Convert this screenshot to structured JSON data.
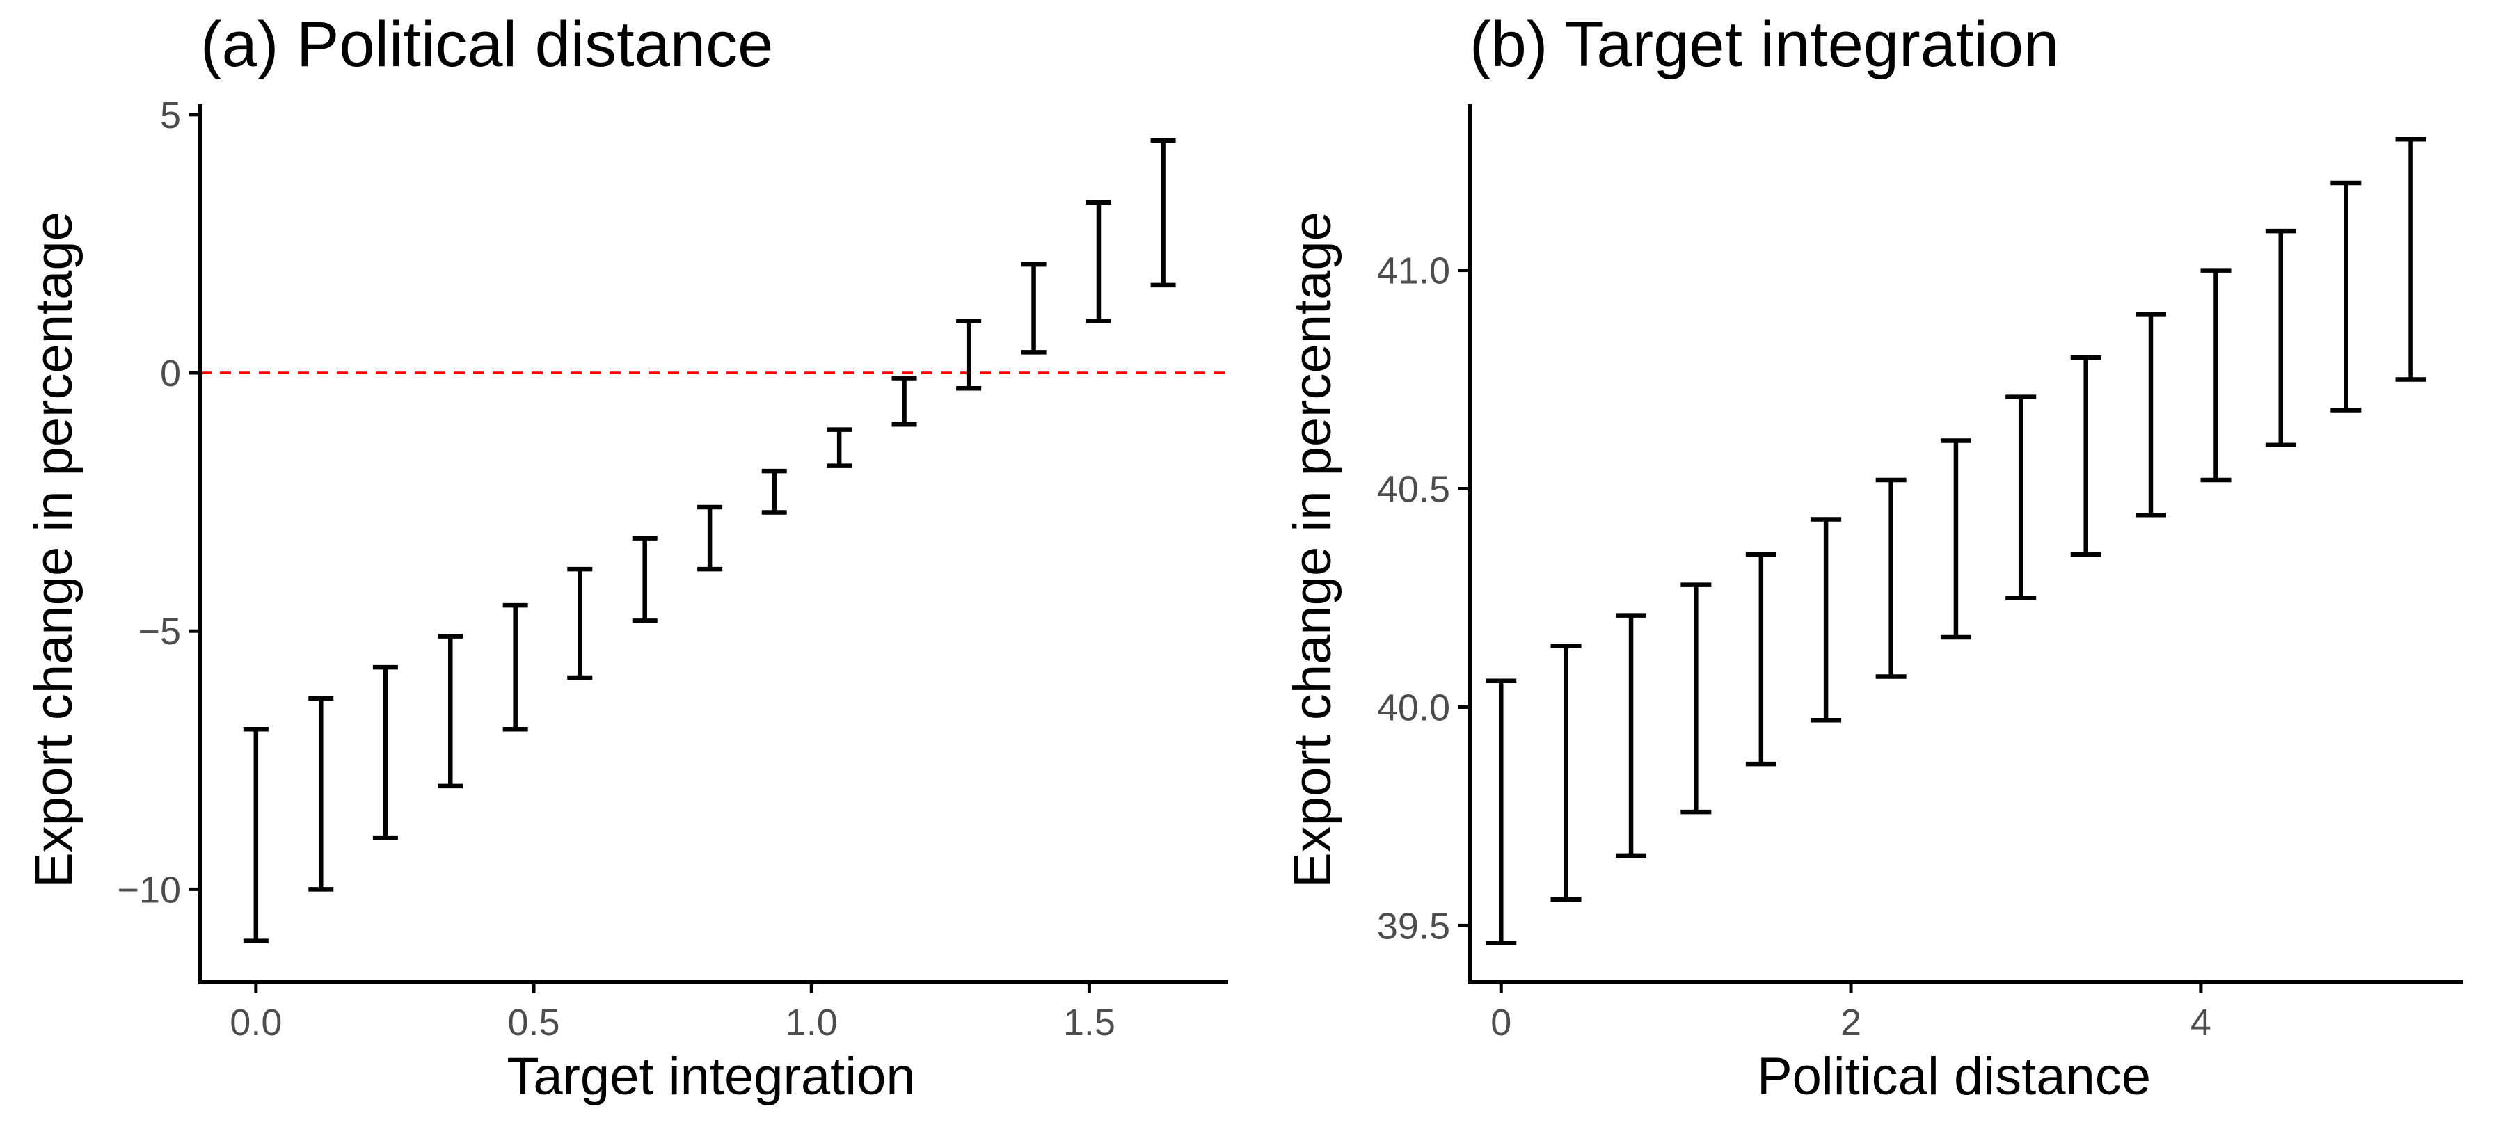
{
  "chart_data": [
    {
      "type": "errorbar",
      "title": "(a) Political distance",
      "xlabel": "Target integration",
      "ylabel": "Export change in percentage",
      "xlim": [
        -0.1,
        1.75
      ],
      "ylim": [
        -11.8,
        5.2
      ],
      "xticks": [
        0.0,
        0.5,
        1.0,
        1.5
      ],
      "xtick_labels": [
        "0.0",
        "0.5",
        "1.0",
        "1.5"
      ],
      "yticks": [
        -10,
        -5,
        0,
        5
      ],
      "ytick_labels": [
        "−10",
        "−5",
        "0",
        "5"
      ],
      "reference_line": {
        "y": 0,
        "color": "#ff0000",
        "style": "dashed"
      },
      "grid": false,
      "x": [
        0.0,
        0.117,
        0.233,
        0.35,
        0.467,
        0.583,
        0.7,
        0.817,
        0.933,
        1.05,
        1.167,
        1.283,
        1.4,
        1.517,
        1.633
      ],
      "lower": [
        -11.0,
        -10.0,
        -9.0,
        -8.0,
        -6.9,
        -5.9,
        -4.8,
        -3.8,
        -2.7,
        -1.8,
        -1.0,
        -0.3,
        0.4,
        1.0,
        1.7
      ],
      "upper": [
        -6.9,
        -6.3,
        -5.7,
        -5.1,
        -4.5,
        -3.8,
        -3.2,
        -2.6,
        -1.9,
        -1.1,
        -0.1,
        1.0,
        2.1,
        3.3,
        4.5
      ]
    },
    {
      "type": "errorbar",
      "title": "(b) Target integration",
      "xlabel": "Political distance",
      "ylabel": "Export change in percentage",
      "xlim": [
        -0.18,
        5.5
      ],
      "ylim": [
        39.37,
        41.38
      ],
      "xticks": [
        0,
        2,
        4
      ],
      "xtick_labels": [
        "0",
        "2",
        "4"
      ],
      "yticks": [
        39.5,
        40.0,
        40.5,
        41.0
      ],
      "ytick_labels": [
        "39.5",
        "40.0",
        "40.5",
        "41.0"
      ],
      "grid": false,
      "x": [
        0.0,
        0.371,
        0.743,
        1.114,
        1.486,
        1.857,
        2.229,
        2.6,
        2.971,
        3.343,
        3.714,
        4.086,
        4.457,
        4.829,
        5.2
      ],
      "lower": [
        39.46,
        39.56,
        39.66,
        39.76,
        39.87,
        39.97,
        40.07,
        40.16,
        40.25,
        40.35,
        40.44,
        40.52,
        40.6,
        40.68,
        40.75
      ],
      "upper": [
        40.06,
        40.14,
        40.21,
        40.28,
        40.35,
        40.43,
        40.52,
        40.61,
        40.71,
        40.8,
        40.9,
        41.0,
        41.09,
        41.2,
        41.3
      ]
    }
  ]
}
